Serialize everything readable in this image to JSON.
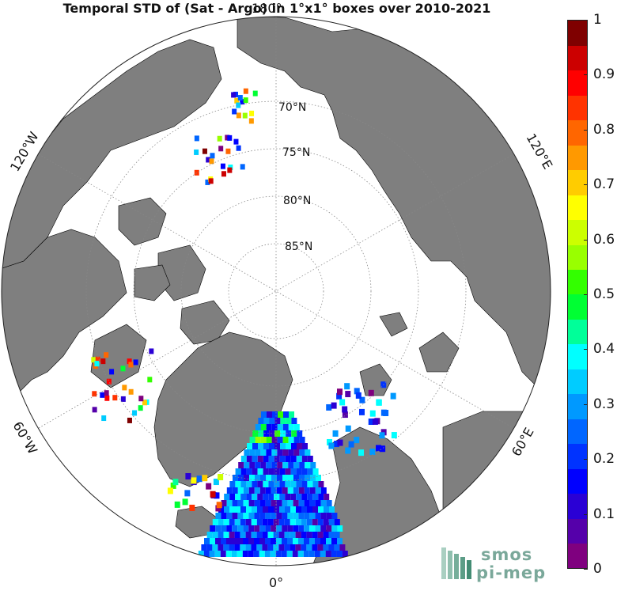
{
  "title": "Temporal STD of (Sat - Argo) in 1°x1° boxes over 2010-2021",
  "map": {
    "projection": "north-polar-stereographic",
    "lat_labels": [
      "70°N",
      "75°N",
      "80°N",
      "85°N"
    ],
    "lon_labels": {
      "top": "180°",
      "bottom": "0°",
      "upper_left": "120°W",
      "upper_right": "120°E",
      "lower_left": "60°W",
      "lower_right": "60°E"
    },
    "land_color": "#7f7f7f",
    "ocean_color": "#ffffff"
  },
  "colorbar": {
    "ticks": [
      "0",
      "0.1",
      "0.2",
      "0.3",
      "0.4",
      "0.5",
      "0.6",
      "0.7",
      "0.8",
      "0.9",
      "1"
    ],
    "range": [
      0,
      1
    ],
    "colormap": [
      "#7f007f",
      "#5500aa",
      "#2a00d5",
      "#0000ff",
      "#0033ff",
      "#0066ff",
      "#0099ff",
      "#00ccff",
      "#00ffff",
      "#00ff99",
      "#00ff33",
      "#33ff00",
      "#99ff00",
      "#ccff00",
      "#ffff00",
      "#ffcc00",
      "#ff9900",
      "#ff6600",
      "#ff3300",
      "#ff0000",
      "#cc0000",
      "#7f0000"
    ]
  },
  "logo": {
    "line1": "smos",
    "line2": "pi-mep"
  }
}
